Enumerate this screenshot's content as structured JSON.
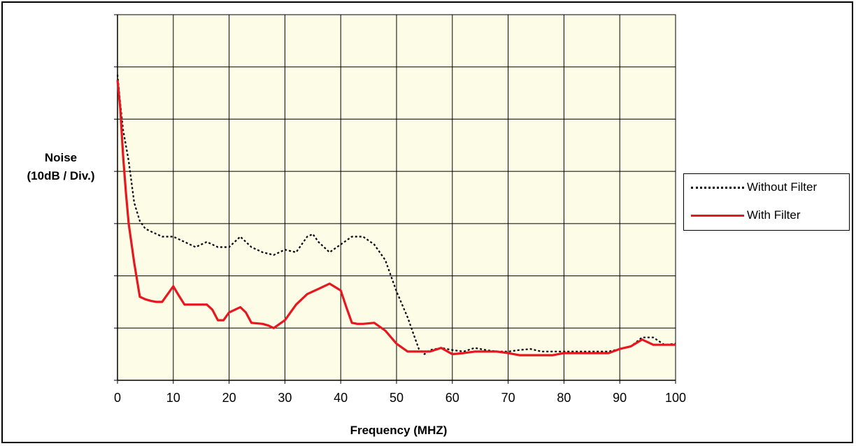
{
  "chart_data": {
    "type": "line",
    "title": "",
    "xlabel": "Frequency (MHZ)",
    "ylabel_lines": [
      "Noise",
      "(10dB / Div.)"
    ],
    "xlim": [
      0,
      100
    ],
    "ylim": [
      0,
      7
    ],
    "x_ticks": [
      0,
      10,
      20,
      30,
      40,
      50,
      60,
      70,
      80,
      90,
      100
    ],
    "y_divisions": 7,
    "grid": true,
    "legend_position": "right",
    "plot_background": "#fdfce6",
    "series": [
      {
        "name": "Without Filter",
        "color": "#000000",
        "style": "dotted",
        "points": [
          [
            0,
            5.85
          ],
          [
            0.5,
            5.3
          ],
          [
            1,
            4.8
          ],
          [
            1.5,
            4.5
          ],
          [
            2,
            4.2
          ],
          [
            3,
            3.4
          ],
          [
            4,
            3.05
          ],
          [
            5,
            2.9
          ],
          [
            6,
            2.85
          ],
          [
            7,
            2.8
          ],
          [
            8,
            2.75
          ],
          [
            10,
            2.75
          ],
          [
            12,
            2.65
          ],
          [
            14,
            2.55
          ],
          [
            16,
            2.65
          ],
          [
            18,
            2.55
          ],
          [
            20,
            2.55
          ],
          [
            22,
            2.75
          ],
          [
            24,
            2.55
          ],
          [
            26,
            2.45
          ],
          [
            28,
            2.4
          ],
          [
            30,
            2.5
          ],
          [
            32,
            2.45
          ],
          [
            34,
            2.75
          ],
          [
            35,
            2.8
          ],
          [
            36,
            2.65
          ],
          [
            38,
            2.45
          ],
          [
            40,
            2.6
          ],
          [
            42,
            2.75
          ],
          [
            44,
            2.75
          ],
          [
            46,
            2.6
          ],
          [
            48,
            2.3
          ],
          [
            50,
            1.7
          ],
          [
            52,
            1.2
          ],
          [
            53,
            0.9
          ],
          [
            54,
            0.6
          ],
          [
            55,
            0.5
          ],
          [
            56,
            0.58
          ],
          [
            58,
            0.62
          ],
          [
            60,
            0.58
          ],
          [
            62,
            0.55
          ],
          [
            64,
            0.62
          ],
          [
            66,
            0.58
          ],
          [
            68,
            0.55
          ],
          [
            70,
            0.55
          ],
          [
            72,
            0.58
          ],
          [
            74,
            0.6
          ],
          [
            76,
            0.55
          ],
          [
            78,
            0.55
          ],
          [
            80,
            0.55
          ],
          [
            84,
            0.55
          ],
          [
            88,
            0.55
          ],
          [
            90,
            0.6
          ],
          [
            92,
            0.65
          ],
          [
            94,
            0.82
          ],
          [
            96,
            0.82
          ],
          [
            98,
            0.68
          ],
          [
            100,
            0.7
          ]
        ]
      },
      {
        "name": "With Filter",
        "color": "#e8161e",
        "style": "solid",
        "points": [
          [
            0,
            5.75
          ],
          [
            0.5,
            5.2
          ],
          [
            1,
            4.3
          ],
          [
            1.5,
            3.6
          ],
          [
            2,
            3.0
          ],
          [
            3,
            2.25
          ],
          [
            4,
            1.6
          ],
          [
            5,
            1.55
          ],
          [
            6,
            1.52
          ],
          [
            7,
            1.5
          ],
          [
            8,
            1.5
          ],
          [
            10,
            1.8
          ],
          [
            11,
            1.62
          ],
          [
            12,
            1.45
          ],
          [
            14,
            1.45
          ],
          [
            16,
            1.45
          ],
          [
            17,
            1.35
          ],
          [
            18,
            1.15
          ],
          [
            19,
            1.15
          ],
          [
            20,
            1.3
          ],
          [
            22,
            1.4
          ],
          [
            23,
            1.3
          ],
          [
            24,
            1.1
          ],
          [
            26,
            1.08
          ],
          [
            27,
            1.05
          ],
          [
            28,
            1.0
          ],
          [
            30,
            1.15
          ],
          [
            32,
            1.45
          ],
          [
            34,
            1.65
          ],
          [
            36,
            1.75
          ],
          [
            38,
            1.85
          ],
          [
            40,
            1.72
          ],
          [
            41,
            1.4
          ],
          [
            42,
            1.1
          ],
          [
            43,
            1.08
          ],
          [
            44,
            1.08
          ],
          [
            46,
            1.1
          ],
          [
            48,
            0.95
          ],
          [
            50,
            0.7
          ],
          [
            52,
            0.55
          ],
          [
            54,
            0.55
          ],
          [
            56,
            0.55
          ],
          [
            58,
            0.62
          ],
          [
            60,
            0.5
          ],
          [
            62,
            0.52
          ],
          [
            64,
            0.55
          ],
          [
            66,
            0.55
          ],
          [
            68,
            0.55
          ],
          [
            70,
            0.52
          ],
          [
            72,
            0.48
          ],
          [
            74,
            0.48
          ],
          [
            76,
            0.48
          ],
          [
            78,
            0.48
          ],
          [
            80,
            0.52
          ],
          [
            84,
            0.52
          ],
          [
            88,
            0.52
          ],
          [
            90,
            0.6
          ],
          [
            92,
            0.65
          ],
          [
            94,
            0.78
          ],
          [
            96,
            0.68
          ],
          [
            98,
            0.68
          ],
          [
            100,
            0.68
          ]
        ]
      }
    ]
  }
}
